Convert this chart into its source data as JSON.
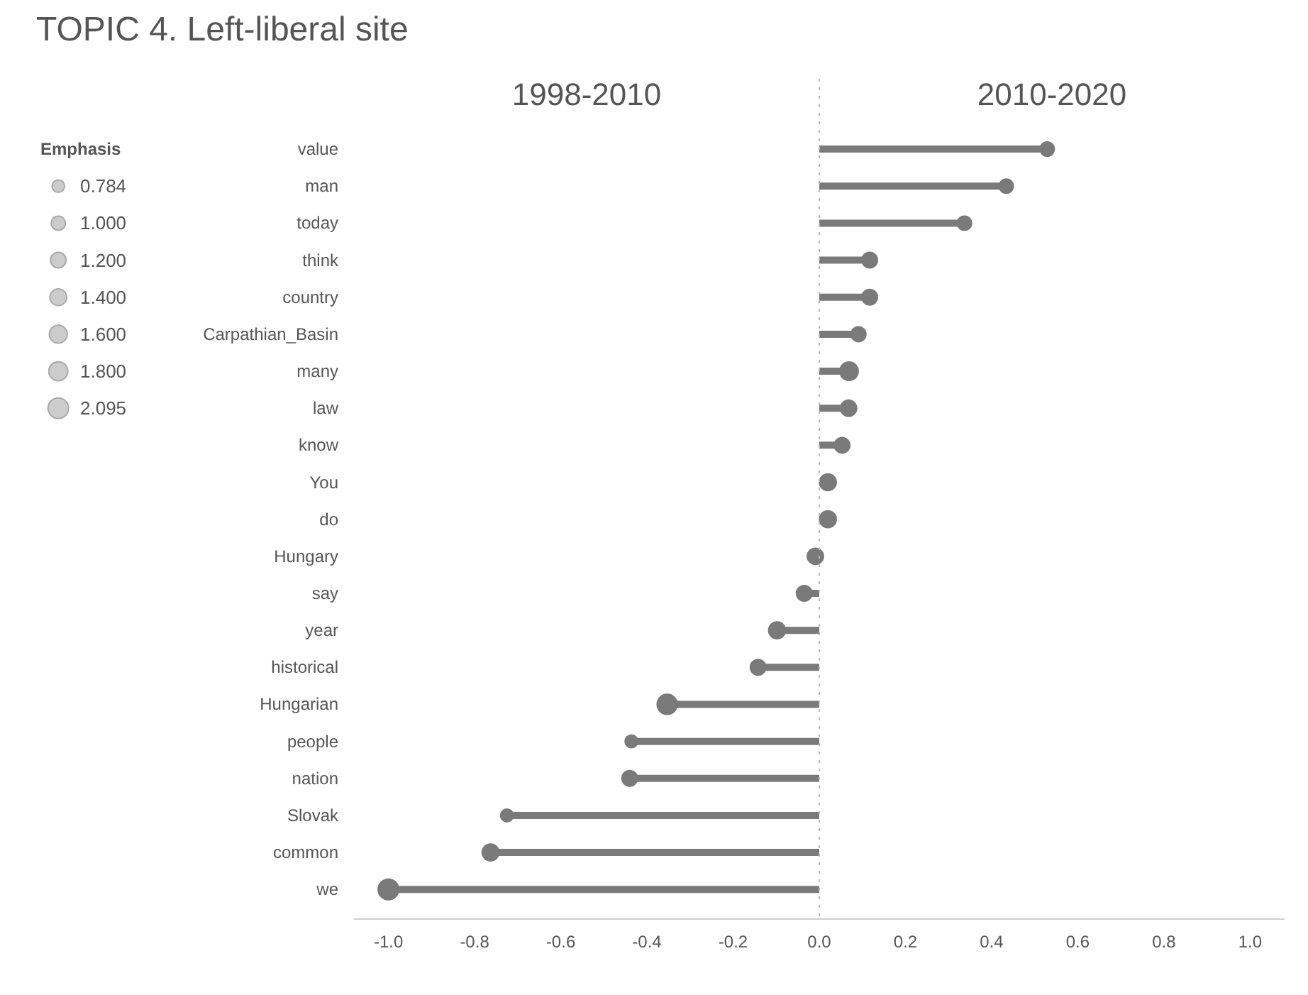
{
  "chart_data": {
    "type": "lollipop",
    "orientation": "horizontal",
    "title": "TOPIC 4. Left-liberal site",
    "legend_title": "Emphasis",
    "grid": false,
    "marker": "circle",
    "color": "#7a7a7a",
    "annotations": [
      "1998-2010",
      "2010-2020"
    ],
    "categories": [
      "value",
      "man",
      "today",
      "think",
      "country",
      "Carpathian_Basin",
      "many",
      "law",
      "know",
      "You",
      "do",
      "Hungary",
      "say",
      "year",
      "historical",
      "Hungarian",
      "people",
      "nation",
      "Slovak",
      "common",
      "we"
    ],
    "values": [
      0.529,
      0.434,
      0.337,
      0.117,
      0.117,
      0.091,
      0.069,
      0.068,
      0.053,
      0.02,
      0.02,
      -0.009,
      -0.035,
      -0.098,
      -0.142,
      -0.353,
      -0.436,
      -0.44,
      -0.725,
      -0.763,
      -1.0
    ],
    "sizes": [
      1.0,
      1.0,
      1.0,
      1.2,
      1.2,
      1.1,
      1.7,
      1.3,
      1.2,
      1.4,
      1.4,
      1.3,
      1.2,
      1.4,
      1.2,
      2.0,
      0.8,
      1.2,
      0.8,
      1.4,
      2.095
    ],
    "size_legend": [
      {
        "value": 0.784,
        "label": "0.784"
      },
      {
        "value": 1.0,
        "label": "1.000"
      },
      {
        "value": 1.2,
        "label": "1.200"
      },
      {
        "value": 1.4,
        "label": "1.400"
      },
      {
        "value": 1.6,
        "label": "1.600"
      },
      {
        "value": 1.8,
        "label": "1.800"
      },
      {
        "value": 2.095,
        "label": "2.095"
      }
    ],
    "xlim": [
      -1.08,
      1.08
    ],
    "xticks": [
      {
        "value": -1.0,
        "label": "-1.0"
      },
      {
        "value": -0.8,
        "label": "-0.8"
      },
      {
        "value": -0.6,
        "label": "-0.6"
      },
      {
        "value": -0.4,
        "label": "-0.4"
      },
      {
        "value": -0.2,
        "label": "-0.2"
      },
      {
        "value": 0.0,
        "label": "0.0"
      },
      {
        "value": 0.2,
        "label": "0.2"
      },
      {
        "value": 0.4,
        "label": "0.4"
      },
      {
        "value": 0.6,
        "label": "0.6"
      },
      {
        "value": 0.8,
        "label": "0.8"
      },
      {
        "value": 1.0,
        "label": "1.0"
      }
    ],
    "ref_lines": [
      {
        "axis": "x",
        "value": 0,
        "line_style": "dotted",
        "color": "#bbbbbb"
      }
    ]
  }
}
